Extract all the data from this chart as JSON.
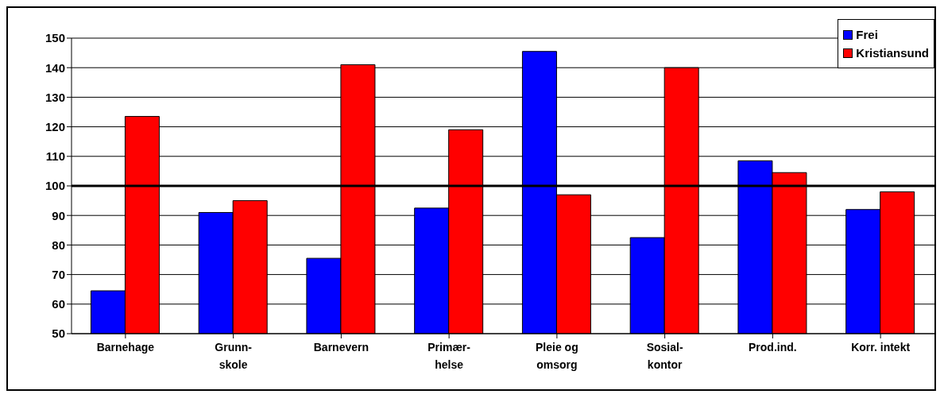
{
  "chart_data": {
    "type": "bar",
    "categories": [
      "Barnehage",
      "Grunn-\nskole",
      "Barnevern",
      "Primær-\nhelse",
      "Pleie og\nomsorg",
      "Sosial-\nkontor",
      "Prod.ind.",
      "Korr. intekt"
    ],
    "series": [
      {
        "name": "Frei",
        "color": "#0000ff",
        "values": [
          64.5,
          91,
          75.5,
          92.5,
          145.5,
          82.5,
          108.5,
          92
        ]
      },
      {
        "name": "Kristiansund",
        "color": "#ff0000",
        "values": [
          123.5,
          95,
          141,
          119,
          97,
          140,
          104.5,
          98
        ]
      }
    ],
    "ylim": [
      50,
      150
    ],
    "yticks": [
      50,
      60,
      70,
      80,
      90,
      100,
      110,
      120,
      130,
      140,
      150
    ],
    "grid": "y",
    "legend": "top right",
    "ref_lines": [
      {
        "axis": "y",
        "value": 100,
        "color": "#000000"
      }
    ]
  }
}
